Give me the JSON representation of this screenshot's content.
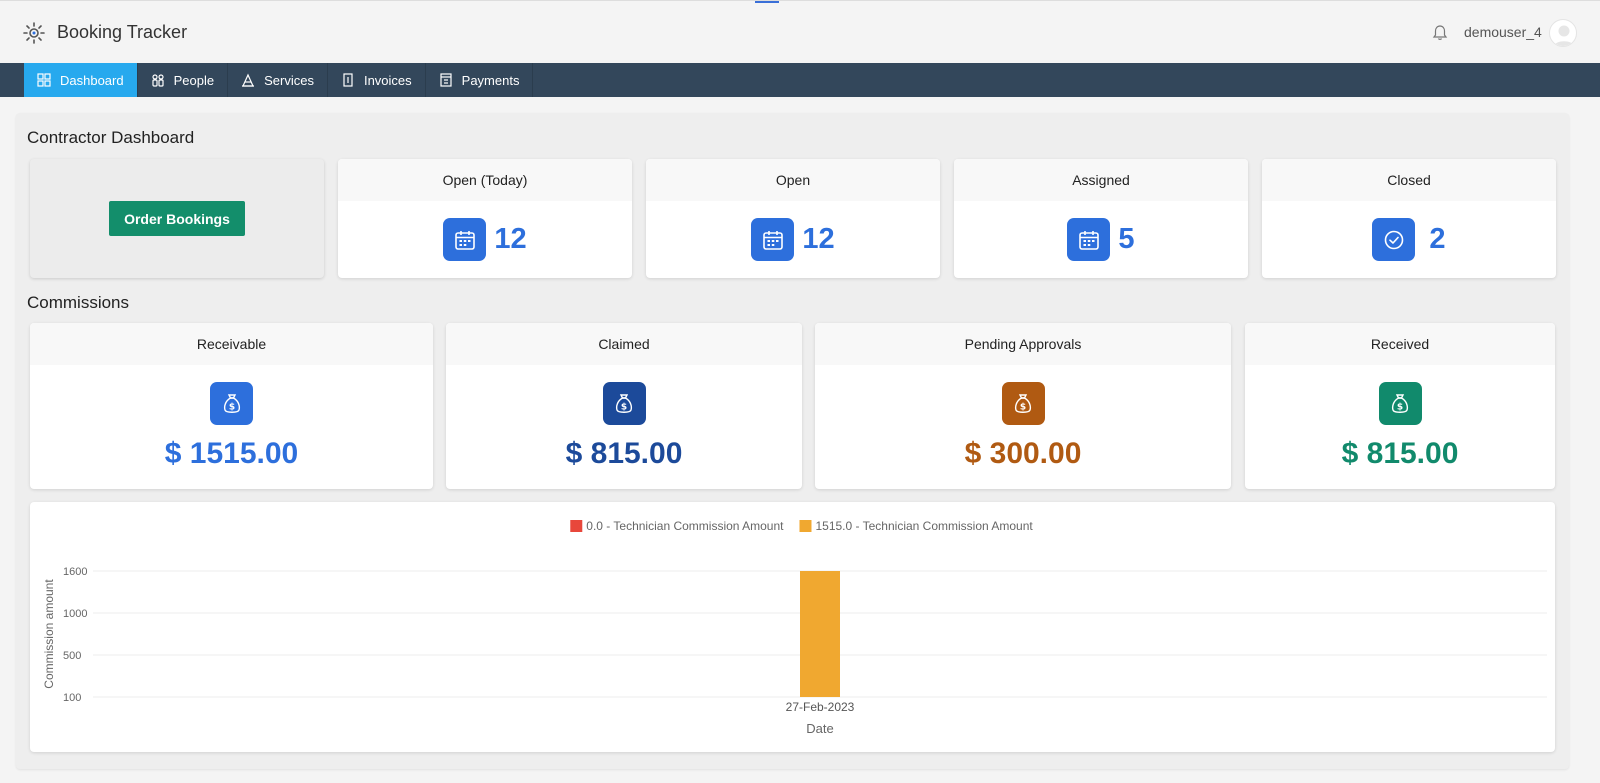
{
  "app": {
    "title": "Booking Tracker",
    "username": "demouser_4"
  },
  "nav": {
    "items": [
      {
        "label": "Dashboard",
        "icon": "dashboard-grid-icon",
        "active": true
      },
      {
        "label": "People",
        "icon": "people-icon",
        "active": false
      },
      {
        "label": "Services",
        "icon": "services-icon",
        "active": false
      },
      {
        "label": "Invoices",
        "icon": "invoice-icon",
        "active": false
      },
      {
        "label": "Payments",
        "icon": "payments-icon",
        "active": false
      }
    ]
  },
  "dashboard": {
    "title": "Contractor Dashboard",
    "order_button": "Order Bookings",
    "stats": [
      {
        "label": "Open (Today)",
        "value": "12",
        "icon": "calendar-icon"
      },
      {
        "label": "Open",
        "value": "12",
        "icon": "calendar-icon"
      },
      {
        "label": "Assigned",
        "value": "5",
        "icon": "calendar-icon"
      },
      {
        "label": "Closed",
        "value": "2",
        "icon": "check-circle-icon"
      }
    ]
  },
  "commissions": {
    "title": "Commissions",
    "cards": [
      {
        "label": "Receivable",
        "amount": "$ 1515.00",
        "color": "#2d6fdc",
        "icon": "money-bag-icon"
      },
      {
        "label": "Claimed",
        "amount": "$ 815.00",
        "color": "#1c4a9a",
        "icon": "money-bag-icon"
      },
      {
        "label": "Pending Approvals",
        "amount": "$ 300.00",
        "color": "#b05a12",
        "icon": "money-bag-icon"
      },
      {
        "label": "Received",
        "amount": "$ 815.00",
        "color": "#118a6c",
        "icon": "money-bag-icon"
      }
    ]
  },
  "colors": {
    "nav_bg": "#33475b",
    "nav_active": "#27a9ee",
    "order_button": "#138e6b",
    "icon_blue": "#2d6fdc"
  },
  "chart_data": {
    "type": "bar",
    "categories": [
      "27-Feb-2023"
    ],
    "series": [
      {
        "name": "0.0 - Technician Commission Amount",
        "values": [
          0
        ],
        "color": "#e8473b"
      },
      {
        "name": "1515.0 - Technician Commission Amount",
        "values": [
          1515
        ],
        "color": "#f0a830"
      }
    ],
    "xlabel": "Date",
    "ylabel": "Commission amount",
    "yticks": [
      "1600",
      "1000",
      "500",
      "100"
    ],
    "legend": "top-center",
    "grid": true
  }
}
